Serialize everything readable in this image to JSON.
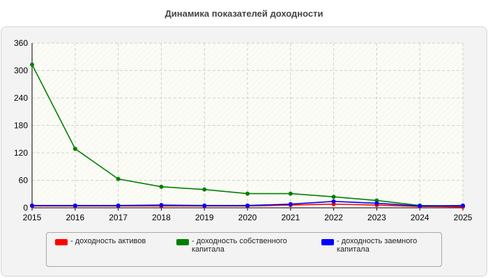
{
  "chart_data": {
    "type": "line",
    "title": "Динамика показателей доходности",
    "x": [
      "2015",
      "2016",
      "2017",
      "2018",
      "2019",
      "2020",
      "2021",
      "2022",
      "2023",
      "2024",
      "2025"
    ],
    "ylim": [
      0,
      360
    ],
    "yticks": [
      0,
      60,
      120,
      180,
      240,
      300,
      360
    ],
    "grid": true,
    "legend_position": "bottom",
    "series": [
      {
        "name": "- доходность активов",
        "color": "#ff0000",
        "values": [
          4,
          4,
          4,
          4,
          4,
          4,
          6,
          8,
          6,
          3,
          2
        ]
      },
      {
        "name": "- доходность собственного капитала",
        "color": "#008000",
        "values": [
          313,
          129,
          63,
          46,
          40,
          31,
          31,
          24,
          16,
          5,
          4
        ]
      },
      {
        "name": "- доходность заемного капитала",
        "color": "#0000ff",
        "values": [
          5,
          5,
          5,
          6,
          5,
          5,
          8,
          14,
          10,
          4,
          5
        ]
      }
    ]
  }
}
